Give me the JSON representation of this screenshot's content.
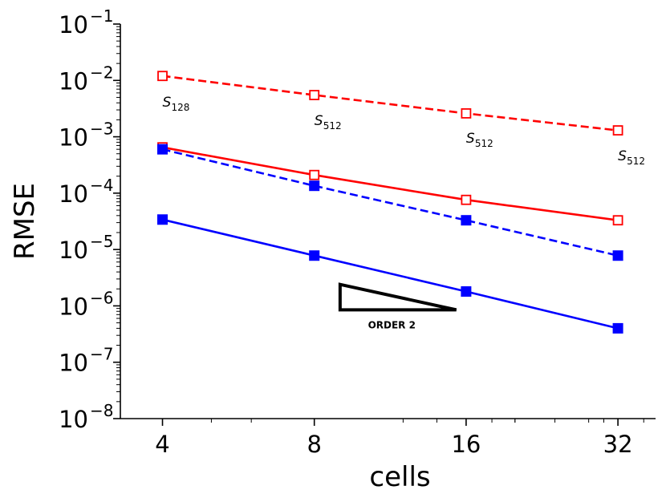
{
  "chart_data": {
    "type": "line",
    "xscale": "log2",
    "yscale": "log10",
    "x": [
      4,
      8,
      16,
      32
    ],
    "xlim": [
      3.3,
      38
    ],
    "ylim": [
      1e-08,
      0.1
    ],
    "xlabel": "cells",
    "ylabel": "RMSE",
    "xticks": [
      {
        "value": 4,
        "label": "4"
      },
      {
        "value": 8,
        "label": "8"
      },
      {
        "value": 16,
        "label": "16"
      },
      {
        "value": 32,
        "label": "32"
      }
    ],
    "yticks": [
      {
        "exp": -1,
        "base": "10",
        "sup": "−1"
      },
      {
        "exp": -2,
        "base": "10",
        "sup": "−2"
      },
      {
        "exp": -3,
        "base": "10",
        "sup": "−3"
      },
      {
        "exp": -4,
        "base": "10",
        "sup": "−4"
      },
      {
        "exp": -5,
        "base": "10",
        "sup": "−5"
      },
      {
        "exp": -6,
        "base": "10",
        "sup": "−6"
      },
      {
        "exp": -7,
        "base": "10",
        "sup": "−7"
      },
      {
        "exp": -8,
        "base": "10",
        "sup": "−8"
      }
    ],
    "series": [
      {
        "name": "red-dashed-open",
        "color": "#ff0000",
        "dash": true,
        "marker": "open-square",
        "values": [
          0.012,
          0.0055,
          0.0026,
          0.0013
        ]
      },
      {
        "name": "red-solid-open",
        "color": "#ff0000",
        "dash": false,
        "marker": "open-square",
        "values": [
          0.00065,
          0.00021,
          7.6e-05,
          3.3e-05
        ]
      },
      {
        "name": "blue-dashed-filled",
        "color": "#0000ff",
        "dash": true,
        "marker": "filled-square",
        "values": [
          0.0006,
          0.000135,
          3.3e-05,
          7.8e-06
        ]
      },
      {
        "name": "blue-solid-filled",
        "color": "#0000ff",
        "dash": false,
        "marker": "filled-square",
        "values": [
          3.4e-05,
          7.8e-06,
          1.8e-06,
          4e-07
        ]
      }
    ],
    "annotations": [
      {
        "x": 4,
        "y": 0.0034,
        "text": "S",
        "sub": "128"
      },
      {
        "x": 8,
        "y": 0.0016,
        "text": "S",
        "sub": "512"
      },
      {
        "x": 16,
        "y": 0.00078,
        "text": "S",
        "sub": "512"
      },
      {
        "x": 32,
        "y": 0.00038,
        "text": "S",
        "sub": "512"
      }
    ],
    "order_triangle": {
      "label": "ORDER 2",
      "x_from": 9.0,
      "x_to": 15.3,
      "y_low": 8.5e-07,
      "y_high": 2.4e-06
    }
  }
}
